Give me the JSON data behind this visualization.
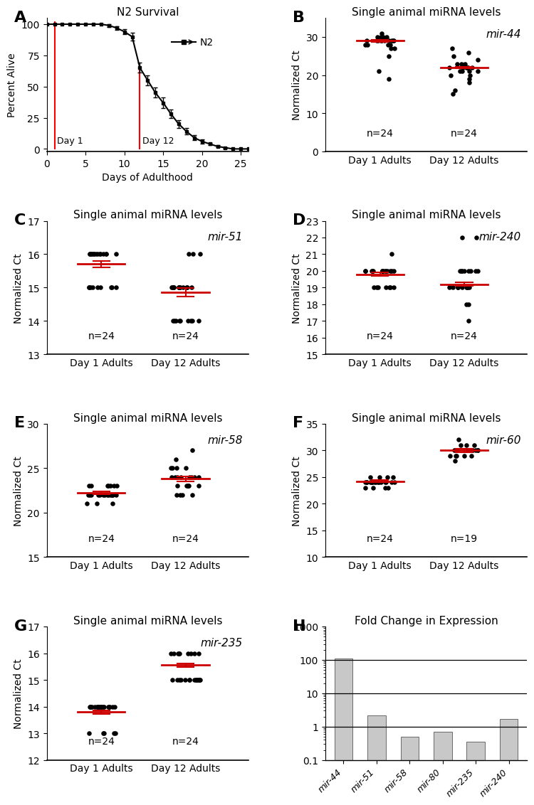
{
  "panel_A": {
    "title": "N2 Survival",
    "xlabel": "Days of Adulthood",
    "ylabel": "Percent Alive",
    "xlim": [
      0,
      26
    ],
    "ylim": [
      -2,
      105
    ],
    "xticks": [
      0,
      5,
      10,
      15,
      20,
      25
    ],
    "yticks": [
      0,
      25,
      50,
      75,
      100
    ],
    "day1_x": 1,
    "day12_x": 12,
    "survival_x": [
      0,
      1,
      2,
      3,
      4,
      5,
      6,
      7,
      8,
      9,
      10,
      11,
      12,
      13,
      14,
      15,
      16,
      17,
      18,
      19,
      20,
      21,
      22,
      23,
      24,
      25,
      26
    ],
    "survival_y": [
      100,
      100,
      100,
      100,
      100,
      100,
      100,
      100,
      99,
      97,
      94,
      90,
      65,
      55,
      45,
      37,
      28,
      20,
      14,
      9,
      6,
      4,
      2,
      1,
      0,
      0,
      0
    ],
    "survival_yerr": [
      0,
      0,
      0,
      0,
      0,
      0,
      0,
      0,
      1,
      1.5,
      2,
      3,
      4,
      4,
      4,
      4,
      3.5,
      3,
      2.5,
      2,
      1.5,
      1,
      0.8,
      0.5,
      0,
      0,
      0
    ]
  },
  "panel_B": {
    "title": "Single animal miRNA levels",
    "xlabel_day1": "Day 1 Adults",
    "xlabel_day12": "Day 12 Adults",
    "ylabel": "Normalized Ct",
    "ylim": [
      0,
      35
    ],
    "yticks": [
      0,
      10,
      20,
      30
    ],
    "mirna": "mir-44",
    "n1": 24,
    "n2": 24,
    "day1_mean": 29.0,
    "day1_sem": 0.3,
    "day12_mean": 22.0,
    "day12_sem": 0.25,
    "day1_points": [
      31,
      30,
      30,
      30,
      30,
      29,
      29,
      29,
      29,
      29,
      29,
      29,
      29,
      29,
      29,
      28,
      28,
      28,
      28,
      27,
      27,
      25,
      21,
      19
    ],
    "day12_points": [
      27,
      26,
      25,
      24,
      23,
      23,
      23,
      22,
      22,
      22,
      22,
      22,
      22,
      22,
      21,
      21,
      21,
      21,
      20,
      20,
      19,
      18,
      16,
      15
    ]
  },
  "panel_C": {
    "title": "Single animal miRNA levels",
    "xlabel_day1": "Day 1 Adults",
    "xlabel_day12": "Day 12 Adults",
    "ylabel": "Normalized Ct",
    "ylim": [
      13,
      17
    ],
    "yticks": [
      13,
      14,
      15,
      16,
      17
    ],
    "mirna": "mir-51",
    "n1": 24,
    "n2": 24,
    "day1_mean": 15.7,
    "day1_sem": 0.1,
    "day12_mean": 14.85,
    "day12_sem": 0.13,
    "day1_points": [
      16,
      16,
      16,
      16,
      16,
      16,
      16,
      16,
      16,
      16,
      16,
      16,
      16,
      16,
      16,
      15,
      15,
      15,
      15,
      15,
      15,
      15,
      15,
      15
    ],
    "day12_points": [
      16,
      16,
      16,
      15,
      15,
      15,
      15,
      15,
      15,
      15,
      15,
      15,
      15,
      15,
      15,
      14,
      14,
      14,
      14,
      14,
      14,
      14,
      14,
      14
    ]
  },
  "panel_D": {
    "title": "Single animal miRNA levels",
    "xlabel_day1": "Day 1 Adults",
    "xlabel_day12": "Day 12 Adults",
    "ylabel": "Normalized Ct",
    "ylim": [
      15,
      23
    ],
    "yticks": [
      15,
      16,
      17,
      18,
      19,
      20,
      21,
      22,
      23
    ],
    "mirna": "mir-240",
    "n1": 24,
    "n2": 24,
    "day1_mean": 19.8,
    "day1_sem": 0.12,
    "day12_mean": 19.2,
    "day12_sem": 0.1,
    "day1_points": [
      20,
      20,
      20,
      20,
      20,
      20,
      20,
      20,
      20,
      20,
      20,
      20,
      20,
      19,
      19,
      19,
      19,
      19,
      19,
      19,
      21,
      20,
      20,
      20
    ],
    "day12_points": [
      20,
      20,
      20,
      20,
      20,
      19,
      19,
      19,
      19,
      19,
      19,
      19,
      19,
      19,
      19,
      19,
      18,
      18,
      17,
      22,
      22,
      20,
      20,
      20
    ]
  },
  "panel_E": {
    "title": "Single animal miRNA levels",
    "xlabel_day1": "Day 1 Adults",
    "xlabel_day12": "Day 12 Adults",
    "ylabel": "Normalized Ct",
    "ylim": [
      15,
      30
    ],
    "yticks": [
      15,
      20,
      25,
      30
    ],
    "mirna": "mir-58",
    "n1": 24,
    "n2": 24,
    "day1_mean": 22.2,
    "day1_sem": 0.15,
    "day12_mean": 23.8,
    "day12_sem": 0.3,
    "day1_points": [
      23,
      23,
      23,
      23,
      23,
      23,
      23,
      22,
      22,
      22,
      22,
      22,
      22,
      22,
      22,
      22,
      22,
      22,
      22,
      22,
      22,
      21,
      21,
      21
    ],
    "day12_points": [
      27,
      26,
      25,
      25,
      25,
      25,
      24,
      24,
      24,
      24,
      24,
      24,
      24,
      24,
      23,
      23,
      23,
      23,
      23,
      23,
      22,
      22,
      22,
      22
    ]
  },
  "panel_F": {
    "title": "Single animal miRNA levels",
    "xlabel_day1": "Day 1 Adults",
    "xlabel_day12": "Day 12 Adults",
    "ylabel": "Normalized Ct",
    "ylim": [
      10,
      35
    ],
    "yticks": [
      10,
      15,
      20,
      25,
      30,
      35
    ],
    "mirna": "mir-60",
    "n1": 24,
    "n2": 19,
    "day1_mean": 24.2,
    "day1_sem": 0.2,
    "day12_mean": 30.0,
    "day12_sem": 0.35,
    "day1_points": [
      25,
      25,
      25,
      25,
      24,
      24,
      24,
      24,
      24,
      24,
      24,
      24,
      24,
      24,
      24,
      24,
      24,
      24,
      24,
      24,
      23,
      23,
      23,
      23
    ],
    "day12_points": [
      32,
      31,
      31,
      31,
      30,
      30,
      30,
      30,
      30,
      30,
      30,
      30,
      30,
      29,
      29,
      29,
      29,
      29,
      28
    ]
  },
  "panel_G": {
    "title": "Single animal miRNA levels",
    "xlabel_day1": "Day 1 Adults",
    "xlabel_day12": "Day 12 Adults",
    "ylabel": "Normalized Ct",
    "ylim": [
      12,
      17
    ],
    "yticks": [
      12,
      13,
      14,
      15,
      16,
      17
    ],
    "mirna": "mir-235",
    "n1": 24,
    "n2": 24,
    "day1_mean": 13.8,
    "day1_sem": 0.07,
    "day12_mean": 15.55,
    "day12_sem": 0.07,
    "day1_points": [
      14,
      14,
      14,
      14,
      14,
      14,
      14,
      14,
      14,
      14,
      14,
      14,
      14,
      14,
      14,
      14,
      14,
      14,
      14,
      13,
      13,
      13,
      13,
      13
    ],
    "day12_points": [
      16,
      16,
      16,
      16,
      16,
      16,
      16,
      16,
      16,
      15,
      15,
      15,
      15,
      15,
      15,
      15,
      15,
      15,
      15,
      15,
      15,
      15,
      15,
      15
    ]
  },
  "panel_H": {
    "title": "Fold Change in Expression",
    "categories": [
      "mir-44",
      "mir-51",
      "mir-58",
      "mir-80",
      "mir-235",
      "mir-240"
    ],
    "values": [
      110,
      2.2,
      0.5,
      0.7,
      0.35,
      1.7
    ],
    "bar_color": "#c8c8c8",
    "ylim_log": [
      0.1,
      1000
    ],
    "yticks_log": [
      0.1,
      1,
      10,
      100,
      1000
    ],
    "hlines": [
      1,
      10,
      100
    ]
  },
  "label_fontsize": 11,
  "panel_label_fontsize": 16,
  "tick_fontsize": 9,
  "dot_color": "black",
  "dot_size": 22,
  "red_color": "#cc0000",
  "line_color": "black"
}
